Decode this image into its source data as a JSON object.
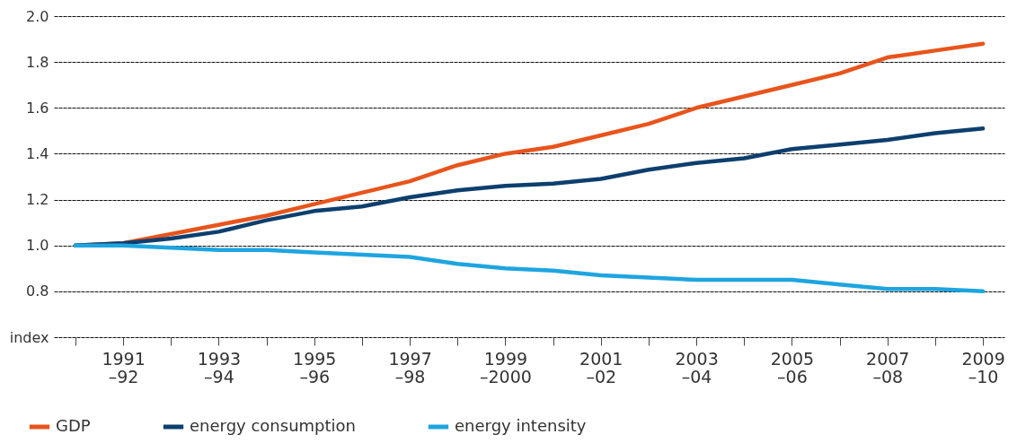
{
  "chart_data": {
    "type": "line",
    "categories": [
      null,
      "1991\n–92",
      null,
      "1993\n–94",
      null,
      "1995\n–96",
      null,
      "1997\n–98",
      null,
      "1999\n–2000",
      null,
      "2001\n–02",
      null,
      "2003\n–04",
      null,
      "2005\n–06",
      null,
      "2007\n–08",
      null,
      "2009\n–10"
    ],
    "series": [
      {
        "name": "GDP",
        "color": "#e8541c",
        "values": [
          1.0,
          1.01,
          1.05,
          1.09,
          1.13,
          1.18,
          1.23,
          1.28,
          1.35,
          1.4,
          1.43,
          1.48,
          1.53,
          1.6,
          1.65,
          1.7,
          1.75,
          1.82,
          1.85,
          1.88
        ]
      },
      {
        "name": "energy consumption",
        "color": "#0d3f6e",
        "values": [
          1.0,
          1.01,
          1.03,
          1.06,
          1.11,
          1.15,
          1.17,
          1.21,
          1.24,
          1.26,
          1.27,
          1.29,
          1.33,
          1.36,
          1.38,
          1.42,
          1.44,
          1.46,
          1.49,
          1.51
        ]
      },
      {
        "name": "energy intensity",
        "color": "#1ea5e0",
        "values": [
          1.0,
          1.0,
          0.99,
          0.98,
          0.98,
          0.97,
          0.96,
          0.95,
          0.92,
          0.9,
          0.89,
          0.87,
          0.86,
          0.85,
          0.85,
          0.85,
          0.83,
          0.81,
          0.81,
          0.8
        ]
      }
    ],
    "ylim": [
      0.6,
      2.0
    ],
    "yticks": [
      {
        "value": 0.6,
        "label": "index"
      },
      {
        "value": 0.8,
        "label": "0.8"
      },
      {
        "value": 1.0,
        "label": "1.0"
      },
      {
        "value": 1.2,
        "label": "1.2"
      },
      {
        "value": 1.4,
        "label": "1.4"
      },
      {
        "value": 1.6,
        "label": "1.6"
      },
      {
        "value": 1.8,
        "label": "1.8"
      },
      {
        "value": 2.0,
        "label": "2.0"
      }
    ],
    "grid": "y",
    "legend": "bottom left",
    "line_style": "solid",
    "marker": "none"
  }
}
